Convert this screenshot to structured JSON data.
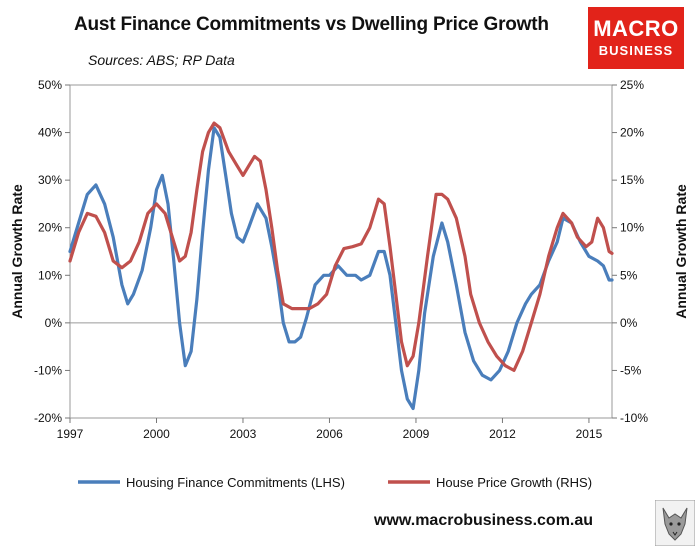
{
  "header": {
    "title": "Aust Finance Commitments vs Dwelling Price Growth",
    "subtitle": "Sources: ABS; RP Data"
  },
  "logo": {
    "line1": "MACRO",
    "line2": "BUSINESS",
    "color": "#e2231a"
  },
  "footer": {
    "url": "www.macrobusiness.com.au"
  },
  "chart_data": {
    "type": "line",
    "title": "Aust Finance Commitments vs Dwelling Price Growth",
    "subtitle": "Sources: ABS; RP Data",
    "ylabel_left": "Annual Growth Rate",
    "ylabel_right": "Annual Growth Rate",
    "xlim": [
      1997,
      2015.8
    ],
    "ylim_left": [
      -20,
      50
    ],
    "ylim_right": [
      -10,
      25
    ],
    "x_ticks": [
      "1997",
      "2000",
      "2003",
      "2006",
      "2009",
      "2012",
      "2015"
    ],
    "y_ticks_left": [
      "50%",
      "40%",
      "30%",
      "20%",
      "10%",
      "0%",
      "-10%",
      "-20%"
    ],
    "y_ticks_right": [
      "25%",
      "20%",
      "15%",
      "10%",
      "5%",
      "0%",
      "-5%",
      "-10%"
    ],
    "grid": false,
    "legend_position": "bottom",
    "series": [
      {
        "name": "Housing Finance Commitments (LHS)",
        "axis": "left",
        "color": "#4a7ebb",
        "points": [
          [
            1997.0,
            15
          ],
          [
            1997.3,
            21
          ],
          [
            1997.6,
            27
          ],
          [
            1997.9,
            29
          ],
          [
            1998.2,
            25
          ],
          [
            1998.5,
            18
          ],
          [
            1998.8,
            8
          ],
          [
            1999.0,
            4
          ],
          [
            1999.2,
            6
          ],
          [
            1999.5,
            11
          ],
          [
            1999.8,
            20
          ],
          [
            2000.0,
            28
          ],
          [
            2000.2,
            31
          ],
          [
            2000.4,
            25
          ],
          [
            2000.6,
            13
          ],
          [
            2000.8,
            0
          ],
          [
            2001.0,
            -9
          ],
          [
            2001.2,
            -6
          ],
          [
            2001.4,
            5
          ],
          [
            2001.6,
            19
          ],
          [
            2001.8,
            32
          ],
          [
            2002.0,
            41
          ],
          [
            2002.2,
            39
          ],
          [
            2002.4,
            31
          ],
          [
            2002.6,
            23
          ],
          [
            2002.8,
            18
          ],
          [
            2003.0,
            17
          ],
          [
            2003.2,
            20
          ],
          [
            2003.5,
            25
          ],
          [
            2003.8,
            22
          ],
          [
            2004.0,
            16
          ],
          [
            2004.2,
            9
          ],
          [
            2004.4,
            0
          ],
          [
            2004.6,
            -4
          ],
          [
            2004.8,
            -4
          ],
          [
            2005.0,
            -3
          ],
          [
            2005.2,
            1
          ],
          [
            2005.5,
            8
          ],
          [
            2005.8,
            10
          ],
          [
            2006.0,
            10
          ],
          [
            2006.3,
            12
          ],
          [
            2006.6,
            10
          ],
          [
            2006.9,
            10
          ],
          [
            2007.1,
            9
          ],
          [
            2007.4,
            10
          ],
          [
            2007.7,
            15
          ],
          [
            2007.9,
            15
          ],
          [
            2008.1,
            10
          ],
          [
            2008.3,
            0
          ],
          [
            2008.5,
            -10
          ],
          [
            2008.7,
            -16
          ],
          [
            2008.9,
            -18
          ],
          [
            2009.1,
            -10
          ],
          [
            2009.3,
            2
          ],
          [
            2009.6,
            14
          ],
          [
            2009.9,
            21
          ],
          [
            2010.1,
            17
          ],
          [
            2010.4,
            8
          ],
          [
            2010.7,
            -2
          ],
          [
            2011.0,
            -8
          ],
          [
            2011.3,
            -11
          ],
          [
            2011.6,
            -12
          ],
          [
            2011.9,
            -10
          ],
          [
            2012.2,
            -6
          ],
          [
            2012.5,
            0
          ],
          [
            2012.8,
            4
          ],
          [
            2013.0,
            6
          ],
          [
            2013.3,
            8
          ],
          [
            2013.6,
            13
          ],
          [
            2013.9,
            17
          ],
          [
            2014.1,
            22
          ],
          [
            2014.4,
            21
          ],
          [
            2014.7,
            17
          ],
          [
            2015.0,
            14
          ],
          [
            2015.3,
            13
          ],
          [
            2015.5,
            12
          ],
          [
            2015.7,
            9
          ],
          [
            2015.8,
            9
          ]
        ]
      },
      {
        "name": "House Price Growth (RHS)",
        "axis": "right",
        "color": "#c0504d",
        "points": [
          [
            1997.0,
            6.5
          ],
          [
            1997.3,
            9.5
          ],
          [
            1997.6,
            11.5
          ],
          [
            1997.9,
            11.2
          ],
          [
            1998.2,
            9.5
          ],
          [
            1998.5,
            6.5
          ],
          [
            1998.8,
            5.8
          ],
          [
            1999.1,
            6.5
          ],
          [
            1999.4,
            8.5
          ],
          [
            1999.7,
            11.5
          ],
          [
            2000.0,
            12.5
          ],
          [
            2000.3,
            11.5
          ],
          [
            2000.6,
            8.5
          ],
          [
            2000.8,
            6.5
          ],
          [
            2001.0,
            7.0
          ],
          [
            2001.2,
            9.5
          ],
          [
            2001.4,
            14.0
          ],
          [
            2001.6,
            18.0
          ],
          [
            2001.8,
            20.0
          ],
          [
            2002.0,
            21.0
          ],
          [
            2002.2,
            20.5
          ],
          [
            2002.5,
            18.0
          ],
          [
            2002.8,
            16.5
          ],
          [
            2003.0,
            15.5
          ],
          [
            2003.2,
            16.5
          ],
          [
            2003.4,
            17.5
          ],
          [
            2003.6,
            17.0
          ],
          [
            2003.8,
            14.0
          ],
          [
            2004.0,
            10.0
          ],
          [
            2004.2,
            5.5
          ],
          [
            2004.4,
            2.0
          ],
          [
            2004.7,
            1.5
          ],
          [
            2005.0,
            1.5
          ],
          [
            2005.3,
            1.5
          ],
          [
            2005.6,
            2.0
          ],
          [
            2005.9,
            3.0
          ],
          [
            2006.2,
            6.0
          ],
          [
            2006.5,
            7.8
          ],
          [
            2006.8,
            8.0
          ],
          [
            2007.1,
            8.3
          ],
          [
            2007.4,
            10.0
          ],
          [
            2007.7,
            13.0
          ],
          [
            2007.9,
            12.5
          ],
          [
            2008.1,
            8.0
          ],
          [
            2008.3,
            3.0
          ],
          [
            2008.5,
            -2.0
          ],
          [
            2008.7,
            -4.5
          ],
          [
            2008.9,
            -3.5
          ],
          [
            2009.1,
            0.0
          ],
          [
            2009.4,
            7.0
          ],
          [
            2009.7,
            13.5
          ],
          [
            2009.9,
            13.5
          ],
          [
            2010.1,
            13.0
          ],
          [
            2010.4,
            11.0
          ],
          [
            2010.7,
            7.0
          ],
          [
            2010.9,
            3.0
          ],
          [
            2011.2,
            0.0
          ],
          [
            2011.5,
            -2.0
          ],
          [
            2011.8,
            -3.5
          ],
          [
            2012.1,
            -4.5
          ],
          [
            2012.4,
            -5.0
          ],
          [
            2012.7,
            -3.0
          ],
          [
            2013.0,
            0.0
          ],
          [
            2013.3,
            3.0
          ],
          [
            2013.6,
            7.0
          ],
          [
            2013.9,
            10.0
          ],
          [
            2014.1,
            11.5
          ],
          [
            2014.4,
            10.5
          ],
          [
            2014.6,
            9.0
          ],
          [
            2014.9,
            8.0
          ],
          [
            2015.1,
            8.5
          ],
          [
            2015.3,
            11.0
          ],
          [
            2015.5,
            10.0
          ],
          [
            2015.7,
            7.5
          ],
          [
            2015.8,
            7.3
          ]
        ]
      }
    ]
  }
}
